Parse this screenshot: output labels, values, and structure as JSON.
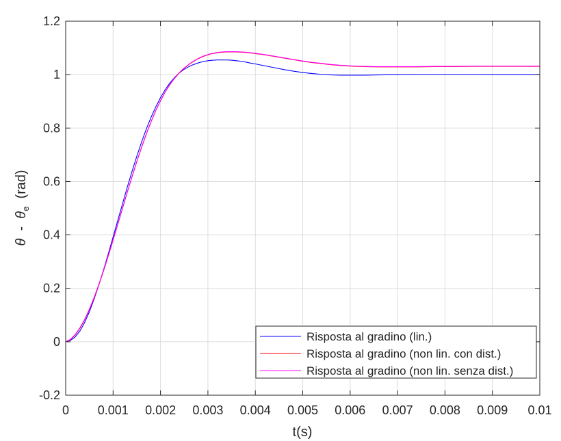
{
  "chart_data": {
    "type": "line",
    "xlabel": "t(s)",
    "ylabel": {
      "parts": [
        {
          "text": "θ",
          "style": "italic"
        },
        {
          "text": "  -  ",
          "style": "normal"
        },
        {
          "text": "θ",
          "style": "italic"
        },
        {
          "text": "e",
          "style": "subscript"
        },
        {
          "text": "  (rad)",
          "style": "normal"
        }
      ]
    },
    "xlim": [
      0,
      0.01
    ],
    "ylim": [
      -0.2,
      1.2
    ],
    "xticks": [
      0,
      0.001,
      0.002,
      0.003,
      0.004,
      0.005,
      0.006,
      0.007,
      0.008,
      0.009,
      0.01
    ],
    "xtick_labels": [
      "0",
      "0.001",
      "0.002",
      "0.003",
      "0.004",
      "0.005",
      "0.006",
      "0.007",
      "0.008",
      "0.009",
      "0.01"
    ],
    "yticks": [
      -0.2,
      0,
      0.2,
      0.4,
      0.6,
      0.8,
      1.0,
      1.2
    ],
    "ytick_labels": [
      "-0.2",
      "0",
      "0.2",
      "0.4",
      "0.6",
      "0.8",
      "1",
      "1.2"
    ],
    "grid": true,
    "legend_position": "bottom-right",
    "series": [
      {
        "name": "Risposta al gradino (lin.)",
        "color": "#0000ff",
        "x": [
          0,
          0.0001,
          0.0002,
          0.0003,
          0.0004,
          0.0005,
          0.0006,
          0.0007,
          0.0008,
          0.0009,
          0.001,
          0.0011,
          0.0012,
          0.0013,
          0.0014,
          0.0015,
          0.0016,
          0.0017,
          0.0018,
          0.0019,
          0.002,
          0.0021,
          0.0022,
          0.0023,
          0.0024,
          0.0025,
          0.0026,
          0.0027,
          0.0028,
          0.0029,
          0.003,
          0.0031,
          0.0032,
          0.0033,
          0.0034,
          0.0035,
          0.0036,
          0.0037,
          0.0038,
          0.0039,
          0.004,
          0.0042,
          0.0044,
          0.0046,
          0.0048,
          0.005,
          0.0052,
          0.0054,
          0.0056,
          0.0058,
          0.006,
          0.0063,
          0.0066,
          0.007,
          0.0074,
          0.0078,
          0.0082,
          0.0086,
          0.009,
          0.0095,
          0.01
        ],
        "y": [
          0,
          0.005,
          0.018,
          0.04,
          0.072,
          0.112,
          0.16,
          0.213,
          0.27,
          0.33,
          0.392,
          0.455,
          0.517,
          0.579,
          0.638,
          0.694,
          0.747,
          0.796,
          0.84,
          0.879,
          0.914,
          0.944,
          0.969,
          0.99,
          1.007,
          1.02,
          1.03,
          1.038,
          1.044,
          1.049,
          1.052,
          1.054,
          1.055,
          1.055,
          1.055,
          1.054,
          1.052,
          1.05,
          1.047,
          1.043,
          1.04,
          1.033,
          1.026,
          1.019,
          1.013,
          1.008,
          1.004,
          1.001,
          0.999,
          0.998,
          0.998,
          0.998,
          0.999,
          1.0,
          1.001,
          1.001,
          1.001,
          1.001,
          1.0,
          1.0,
          1.0
        ]
      },
      {
        "name": "Risposta al gradino (non lin. con dist.)",
        "color": "#ff0000",
        "x": [
          0,
          0.0001,
          0.0002,
          0.0003,
          0.0004,
          0.0005,
          0.0006,
          0.0007,
          0.0008,
          0.0009,
          0.001,
          0.0011,
          0.0012,
          0.0013,
          0.0014,
          0.0015,
          0.0016,
          0.0017,
          0.0018,
          0.0019,
          0.002,
          0.0021,
          0.0022,
          0.0023,
          0.0024,
          0.0025,
          0.0026,
          0.0027,
          0.0028,
          0.0029,
          0.003,
          0.0031,
          0.0032,
          0.0033,
          0.0034,
          0.0035,
          0.0036,
          0.0037,
          0.0038,
          0.0039,
          0.004,
          0.0042,
          0.0044,
          0.0046,
          0.0048,
          0.005,
          0.0052,
          0.0054,
          0.0056,
          0.0058,
          0.006,
          0.0063,
          0.0066,
          0.007,
          0.0074,
          0.0078,
          0.0082,
          0.0086,
          0.009,
          0.0095,
          0.01
        ],
        "y": [
          0,
          0.008,
          0.025,
          0.05,
          0.082,
          0.12,
          0.164,
          0.213,
          0.266,
          0.322,
          0.38,
          0.44,
          0.5,
          0.56,
          0.618,
          0.674,
          0.727,
          0.777,
          0.823,
          0.865,
          0.902,
          0.935,
          0.963,
          0.987,
          1.007,
          1.024,
          1.038,
          1.05,
          1.06,
          1.068,
          1.074,
          1.079,
          1.082,
          1.084,
          1.085,
          1.085,
          1.085,
          1.084,
          1.083,
          1.081,
          1.079,
          1.074,
          1.068,
          1.062,
          1.056,
          1.05,
          1.045,
          1.041,
          1.037,
          1.034,
          1.032,
          1.03,
          1.029,
          1.029,
          1.029,
          1.03,
          1.03,
          1.031,
          1.031,
          1.031,
          1.031
        ]
      },
      {
        "name": "Risposta al gradino (non lin. senza dist.)",
        "color": "#ff00ff",
        "x": [
          0,
          0.0001,
          0.0002,
          0.0003,
          0.0004,
          0.0005,
          0.0006,
          0.0007,
          0.0008,
          0.0009,
          0.001,
          0.0011,
          0.0012,
          0.0013,
          0.0014,
          0.0015,
          0.0016,
          0.0017,
          0.0018,
          0.0019,
          0.002,
          0.0021,
          0.0022,
          0.0023,
          0.0024,
          0.0025,
          0.0026,
          0.0027,
          0.0028,
          0.0029,
          0.003,
          0.0031,
          0.0032,
          0.0033,
          0.0034,
          0.0035,
          0.0036,
          0.0037,
          0.0038,
          0.0039,
          0.004,
          0.0042,
          0.0044,
          0.0046,
          0.0048,
          0.005,
          0.0052,
          0.0054,
          0.0056,
          0.0058,
          0.006,
          0.0063,
          0.0066,
          0.007,
          0.0074,
          0.0078,
          0.0082,
          0.0086,
          0.009,
          0.0095,
          0.01
        ],
        "y": [
          0,
          0.009,
          0.027,
          0.052,
          0.084,
          0.122,
          0.166,
          0.215,
          0.268,
          0.324,
          0.382,
          0.441,
          0.501,
          0.561,
          0.619,
          0.675,
          0.728,
          0.778,
          0.824,
          0.866,
          0.903,
          0.936,
          0.964,
          0.988,
          1.008,
          1.025,
          1.039,
          1.051,
          1.061,
          1.069,
          1.075,
          1.08,
          1.083,
          1.085,
          1.086,
          1.086,
          1.086,
          1.085,
          1.084,
          1.082,
          1.08,
          1.075,
          1.069,
          1.063,
          1.057,
          1.051,
          1.046,
          1.042,
          1.038,
          1.035,
          1.033,
          1.031,
          1.03,
          1.03,
          1.03,
          1.031,
          1.031,
          1.032,
          1.032,
          1.032,
          1.032
        ]
      }
    ]
  }
}
